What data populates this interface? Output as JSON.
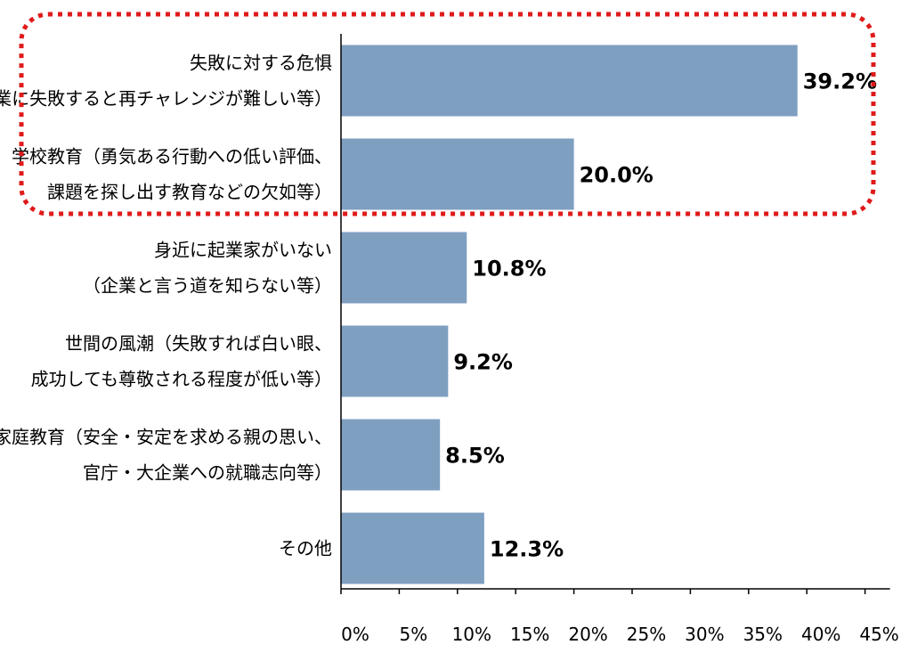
{
  "chart_data": {
    "type": "bar",
    "orientation": "horizontal",
    "categories": [
      [
        "失敗に対する危惧",
        "（企業に失敗すると再チャレンジが難しい等）"
      ],
      [
        "学校教育（勇気ある行動への低い評価、",
        "課題を探し出す教育などの欠如等）"
      ],
      [
        "身近に起業家がいない",
        "（企業と言う道を知らない等）"
      ],
      [
        "世間の風潮（失敗すれば白い眼、",
        "成功しても尊敬される程度が低い等）"
      ],
      [
        "家庭教育（安全・安定を求める親の思い、",
        "官庁・大企業への就職志向等）"
      ],
      [
        "その他"
      ]
    ],
    "values": [
      39.2,
      20.0,
      10.8,
      9.2,
      8.5,
      12.3
    ],
    "value_labels": [
      "39.2%",
      "20.0%",
      "10.8%",
      "9.2%",
      "8.5%",
      "12.3%"
    ],
    "xlim": [
      0,
      45
    ],
    "x_ticks": [
      0,
      5,
      10,
      15,
      20,
      25,
      30,
      35,
      40,
      45
    ],
    "x_tick_labels": [
      "0%",
      "5%",
      "10%",
      "15%",
      "20%",
      "25%",
      "30%",
      "35%",
      "40%",
      "45%"
    ],
    "grid": false,
    "highlight": {
      "categories": [
        0,
        1
      ],
      "style": "red dotted rounded rectangle"
    },
    "bar_color": "#7f9fc1",
    "highlight_color": "#e01a1a"
  }
}
